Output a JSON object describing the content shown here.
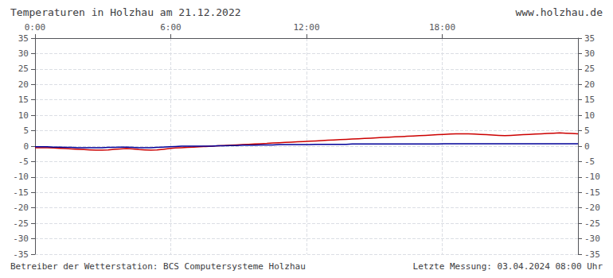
{
  "chart_data": {
    "type": "line",
    "title": "Temperaturen in Holzhau am 21.12.2022",
    "annotations": [
      "www.holzhau.de",
      "Betreiber der Wetterstation: BCS Computersysteme Holzhau",
      "Letzte Messung: 03.04.2024 08:00 Uhr"
    ],
    "x": [
      0,
      16.18,
      32.36,
      48.54,
      64.72,
      80.9,
      97.08,
      113.26,
      129.44,
      145.62,
      161.8,
      177.98,
      194.16,
      210.34,
      226.52,
      242.7,
      258.88,
      275.06,
      291.24,
      307.42,
      323.6,
      339.78,
      355.96,
      372.13,
      388.31,
      404.49,
      420.67,
      436.85,
      453.03,
      469.21,
      485.39,
      501.57,
      517.75,
      533.93,
      550.11,
      566.29,
      582.47,
      598.65,
      614.83,
      631.01,
      647.19,
      663.37,
      679.55,
      695.73,
      711.91,
      728.09,
      744.27,
      760.45,
      776.63,
      792.81,
      808.99,
      825.17,
      841.35,
      857.53,
      873.71,
      889.89,
      906.07,
      922.25,
      938.43,
      954.61,
      970.79,
      986.97,
      1003.15,
      1019.33,
      1035.51,
      1051.69,
      1067.87,
      1084.04,
      1100.22,
      1116.4,
      1132.58,
      1148.76,
      1164.94,
      1181.12,
      1197.3,
      1213.48,
      1229.66,
      1245.84,
      1262.02,
      1278.2,
      1294.38,
      1310.56,
      1326.74,
      1342.92,
      1359.1,
      1375.28,
      1391.46,
      1407.64,
      1423.82,
      1440
    ],
    "series": [
      {
        "color": "#cc0000",
        "values": [
          -0.5,
          -0.5,
          -0.5,
          -0.6,
          -0.7,
          -0.8,
          -0.9,
          -1.0,
          -1.1,
          -1.2,
          -1.3,
          -1.3,
          -1.2,
          -1.0,
          -0.9,
          -0.8,
          -0.9,
          -1.1,
          -1.2,
          -1.3,
          -1.2,
          -1.0,
          -0.8,
          -0.6,
          -0.5,
          -0.4,
          -0.3,
          -0.2,
          -0.1,
          0.0,
          0.1,
          0.2,
          0.3,
          0.4,
          0.5,
          0.6,
          0.7,
          0.8,
          0.9,
          1.0,
          1.1,
          1.2,
          1.3,
          1.4,
          1.5,
          1.6,
          1.7,
          1.8,
          1.9,
          2.0,
          2.1,
          2.2,
          2.3,
          2.4,
          2.5,
          2.6,
          2.7,
          2.8,
          2.9,
          3.0,
          3.1,
          3.2,
          3.3,
          3.4,
          3.5,
          3.6,
          3.7,
          3.8,
          3.9,
          4.0,
          4.0,
          4.0,
          3.9,
          3.8,
          3.7,
          3.6,
          3.5,
          3.4,
          3.5,
          3.6,
          3.7,
          3.8,
          3.9,
          4.0,
          4.1,
          4.2,
          4.3,
          4.2,
          4.1,
          4.0
        ]
      },
      {
        "color": "#000099",
        "values": [
          -0.2,
          -0.2,
          -0.2,
          -0.3,
          -0.3,
          -0.4,
          -0.4,
          -0.5,
          -0.5,
          -0.5,
          -0.5,
          -0.5,
          -0.4,
          -0.4,
          -0.3,
          -0.3,
          -0.4,
          -0.5,
          -0.5,
          -0.5,
          -0.4,
          -0.3,
          -0.2,
          -0.1,
          0.0,
          0.0,
          0.0,
          0.0,
          0.0,
          0.0,
          0.1,
          0.1,
          0.2,
          0.2,
          0.3,
          0.3,
          0.3,
          0.4,
          0.4,
          0.4,
          0.5,
          0.5,
          0.5,
          0.5,
          0.5,
          0.5,
          0.6,
          0.6,
          0.6,
          0.6,
          0.6,
          0.6,
          0.7,
          0.7,
          0.7,
          0.7,
          0.7,
          0.7,
          0.7,
          0.7,
          0.7,
          0.7,
          0.7,
          0.7,
          0.7,
          0.7,
          0.7,
          0.8,
          0.8,
          0.8,
          0.8,
          0.8,
          0.8,
          0.8,
          0.8,
          0.8,
          0.8,
          0.8,
          0.8,
          0.8,
          0.8,
          0.8,
          0.8,
          0.8,
          0.8,
          0.8,
          0.8,
          0.8,
          0.8,
          0.8
        ]
      }
    ],
    "xlim": [
      0,
      1440
    ],
    "xticks": [
      {
        "value": 0,
        "label": "0:00"
      },
      {
        "value": 360,
        "label": "6:00"
      },
      {
        "value": 720,
        "label": "12:00"
      },
      {
        "value": 1080,
        "label": "18:00"
      }
    ],
    "ylim": [
      -35,
      35
    ],
    "yticks": [
      -35,
      -30,
      -25,
      -20,
      -15,
      -10,
      -5,
      0,
      5,
      10,
      15,
      20,
      25,
      30,
      35
    ],
    "grid": true
  }
}
